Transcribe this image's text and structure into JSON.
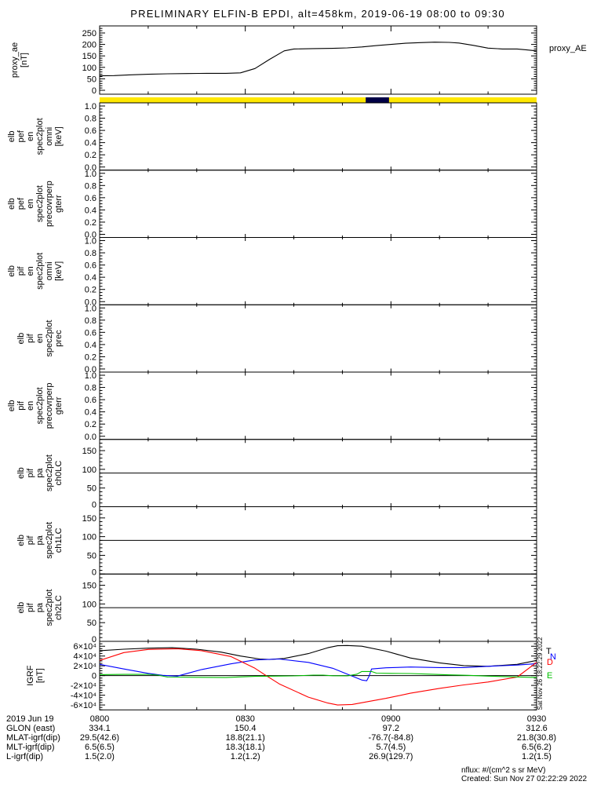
{
  "title": "PRELIMINARY ELFIN-B EPDI, alt=458km, 2019-06-19 08:00 to 09:30",
  "right_axis_label": "proxy_AE",
  "side_timestamp": "Sat Nov 26 18:22:29 2022",
  "notes": {
    "nflux": "nflux: #/(cm^2 s sr MeV)",
    "created": "Created: Sun Nov 27 02:22:29 2022"
  },
  "colors": {
    "line_black": "#000000",
    "line_red": "#ff0000",
    "line_blue": "#0000ff",
    "line_green": "#00c000",
    "bar_yellow": "#ffe800",
    "bar_segment_navy": "#000046"
  },
  "igrf_legend": [
    {
      "text": "T",
      "color": "#000000"
    },
    {
      "text": "N",
      "color": "#0000ff"
    },
    {
      "text": "D",
      "color": "#ff0000"
    },
    {
      "text": "E",
      "color": "#00c000"
    }
  ],
  "footer": {
    "rows": [
      {
        "label": "2019 Jun 19",
        "values": [
          "0800",
          "0830",
          "0900",
          "0930"
        ]
      },
      {
        "label": "GLON (east)",
        "values": [
          "334.1",
          "150.4",
          "97.2",
          "312.6"
        ]
      },
      {
        "label": "MLAT-igrf(dip)",
        "values": [
          "29.5(42.6)",
          "18.8(21.1)",
          "-76.7(-84.8)",
          "21.8(30.8)"
        ]
      },
      {
        "label": "MLT-igrf(dip)",
        "values": [
          "6.5(6.5)",
          "18.3(18.1)",
          "5.7(4.5)",
          "6.5(6.2)"
        ]
      },
      {
        "label": "L-igrf(dip)",
        "values": [
          "1.5(2.0)",
          "1.2(1.2)",
          "26.9(129.7)",
          "1.2(1.5)"
        ]
      }
    ]
  },
  "chart_data": {
    "type": "line",
    "x_axis": {
      "range_minutes": [
        0,
        90
      ],
      "major_tick_minutes": [
        0,
        30,
        60,
        90
      ],
      "minor_step_minutes": 10,
      "tick_labels": [
        "0800",
        "0830",
        "0900",
        "0930"
      ]
    },
    "proxy_panel": {
      "id": "proxy_ae",
      "label_lines": [
        "proxy_ae",
        "[nT]"
      ],
      "ylim": [
        0,
        250
      ],
      "ytick_values": [
        0,
        50,
        100,
        150,
        200,
        250
      ],
      "yminor_step": 10,
      "series": [
        {
          "name": "proxy_AE",
          "color": "#000000",
          "t": [
            0,
            3,
            6,
            10,
            14,
            18,
            22,
            26,
            29,
            32,
            35,
            38,
            40,
            44,
            48,
            51,
            54,
            57,
            60,
            63,
            66,
            69,
            72,
            74,
            77,
            80,
            83,
            86,
            88,
            90
          ],
          "v": [
            63,
            64,
            67,
            70,
            72,
            73,
            74,
            74,
            76,
            95,
            135,
            172,
            180,
            182,
            183,
            185,
            189,
            195,
            200,
            205,
            208,
            210,
            209,
            206,
            196,
            184,
            180,
            180,
            176,
            172
          ]
        }
      ]
    },
    "position_bar": {
      "color": "#ffe800",
      "segment": {
        "start_min": 54.8,
        "end_min": 59.6,
        "color": "#000046"
      }
    },
    "stack_panels": [
      {
        "id": "elb_pef_en_spec2plot_omni",
        "label_lines": [
          "elb",
          "pef",
          "en",
          "spec2plot",
          "omni",
          "[keV]"
        ],
        "kind": "unit",
        "ylim": [
          0,
          1
        ],
        "ytick_labels": [
          "0.0",
          "0.2",
          "0.4",
          "0.6",
          "0.8",
          "1.0"
        ]
      },
      {
        "id": "elb_pef_en_spec2plot_precovrperp",
        "label_lines": [
          "elb",
          "pef",
          "en",
          "spec2plot",
          "precovrperp",
          "gterr"
        ],
        "kind": "unit",
        "ylim": [
          0,
          1
        ],
        "ytick_labels": [
          "0.0",
          "0.2",
          "0.4",
          "0.6",
          "0.8",
          "1.0"
        ]
      },
      {
        "id": "elb_pif_en_spec2plot_omni",
        "label_lines": [
          "elb",
          "pif",
          "en",
          "spec2plot",
          "omni",
          "[keV]"
        ],
        "kind": "unit",
        "ylim": [
          0,
          1
        ],
        "ytick_labels": [
          "0.0",
          "0.2",
          "0.4",
          "0.6",
          "0.8",
          "1.0"
        ]
      },
      {
        "id": "elb_pif_en_spec2plot_prec",
        "label_lines": [
          "elb",
          "pif",
          "en",
          "spec2plot",
          "prec"
        ],
        "kind": "unit",
        "ylim": [
          0,
          1
        ],
        "ytick_labels": [
          "0.0",
          "0.2",
          "0.4",
          "0.6",
          "0.8",
          "1.0"
        ]
      },
      {
        "id": "elb_pif_en_spec2plot_precovrperp",
        "label_lines": [
          "elb",
          "pif",
          "en",
          "spec2plot",
          "precovrperp",
          "gterr"
        ],
        "kind": "unit",
        "ylim": [
          0,
          1
        ],
        "ytick_labels": [
          "0.0",
          "0.2",
          "0.4",
          "0.6",
          "0.8",
          "1.0"
        ]
      },
      {
        "id": "elb_pif_pa_spec2plot_ch0LC",
        "label_lines": [
          "elb",
          "pif",
          "pa",
          "spec2plot",
          "ch0LC"
        ],
        "kind": "pa",
        "ylim": [
          0,
          180
        ],
        "ytick_labels": [
          "0",
          "50",
          "100",
          "150"
        ],
        "overlay_line_value": 90
      },
      {
        "id": "elb_pif_pa_spec2plot_ch1LC",
        "label_lines": [
          "elb",
          "pif",
          "pa",
          "spec2plot",
          "ch1LC"
        ],
        "kind": "pa",
        "ylim": [
          0,
          180
        ],
        "ytick_labels": [
          "0",
          "50",
          "100",
          "150"
        ],
        "overlay_line_value": 90
      },
      {
        "id": "elb_pif_pa_spec2plot_ch2LC",
        "label_lines": [
          "elb",
          "pif",
          "pa",
          "spec2plot",
          "ch2LC"
        ],
        "kind": "pa",
        "ylim": [
          0,
          180
        ],
        "ytick_labels": [
          "0",
          "50",
          "100",
          "150"
        ],
        "overlay_line_value": 90
      }
    ],
    "igrf_panel": {
      "id": "igrf",
      "label_lines": [
        "IGRF",
        "[nT]"
      ],
      "ylim": [
        -70000,
        70000
      ],
      "ytick_values": [
        60000,
        40000,
        20000,
        0,
        -20000,
        -40000,
        -60000
      ],
      "ytick_labels": [
        "6×10⁴",
        "4×10⁴",
        "2×10⁴",
        "0",
        "-2×10⁴",
        "-4×10⁴",
        "-6×10⁴"
      ],
      "yminor_step": 5000,
      "zero_line": true,
      "series": [
        {
          "name": "T",
          "color": "#000000",
          "t": [
            0,
            5,
            10,
            15,
            20,
            25,
            29,
            33,
            35,
            38,
            43,
            47,
            49,
            51,
            54,
            59,
            64,
            70,
            75,
            80,
            86,
            90
          ],
          "v": [
            51000,
            54000,
            56000,
            57000,
            54000,
            48000,
            40000,
            34000,
            33000,
            35000,
            45000,
            57000,
            61000,
            61500,
            60000,
            50000,
            36000,
            26000,
            20500,
            19000,
            23000,
            31000
          ]
        },
        {
          "name": "N",
          "color": "#0000ff",
          "t": [
            0,
            5,
            10,
            13,
            16,
            21,
            27,
            32,
            37,
            43,
            48,
            52,
            54,
            55,
            55.5,
            56,
            59,
            64,
            70,
            75,
            80,
            86,
            90
          ],
          "v": [
            23000,
            13500,
            4500,
            500,
            -1000,
            12500,
            24000,
            32000,
            34000,
            27000,
            15000,
            -1000,
            -9000,
            -10500,
            -1000,
            13500,
            16000,
            17500,
            16500,
            16500,
            19000,
            21500,
            24500
          ]
        },
        {
          "name": "D",
          "color": "#ff0000",
          "t": [
            0,
            5,
            10,
            16,
            21,
            27,
            32,
            34,
            37,
            43,
            47,
            49,
            52,
            59,
            64,
            70,
            75,
            80,
            86,
            90
          ],
          "v": [
            31000,
            47000,
            53500,
            55000,
            51000,
            39000,
            15000,
            2000,
            -17000,
            -44000,
            -56000,
            -60000,
            -59000,
            -46500,
            -36000,
            -26000,
            -19000,
            -13000,
            -3000,
            27000
          ]
        },
        {
          "name": "E",
          "color": "#00c000",
          "t": [
            0,
            5,
            10,
            12,
            14,
            20,
            26,
            32,
            36,
            40,
            44,
            46,
            48,
            51,
            53,
            54,
            56,
            57,
            60,
            64,
            68,
            72,
            76,
            80,
            85,
            90
          ],
          "v": [
            2000,
            2500,
            2700,
            1000,
            -3000,
            -3500,
            -4000,
            -1500,
            -1000,
            -500,
            1000,
            1000,
            -200,
            -500,
            3000,
            8500,
            8500,
            5000,
            4500,
            4200,
            3000,
            1500,
            500,
            -1000,
            -2500,
            -4000
          ]
        }
      ]
    }
  }
}
